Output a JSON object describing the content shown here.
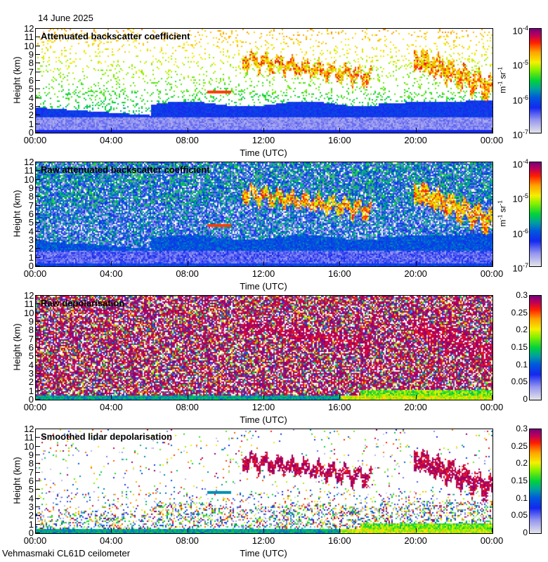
{
  "header": {
    "date": "14 June 2025"
  },
  "footer": {
    "instrument": "Vehmasmaki CL61D ceilometer"
  },
  "chart_data": [
    {
      "type": "heatmap",
      "title": "Attenuated backscatter coefficient",
      "xlabel": "Time (UTC)",
      "ylabel": "Height (km)",
      "xticks": [
        "00:00",
        "04:00",
        "08:00",
        "12:00",
        "16:00",
        "20:00",
        "00:00"
      ],
      "xlim": [
        0,
        24
      ],
      "yticks": [
        "0",
        "1",
        "2",
        "3",
        "4",
        "5",
        "6",
        "7",
        "8",
        "9",
        "10",
        "11",
        "12"
      ],
      "ylim": [
        0,
        12
      ],
      "colorbar": {
        "scale": "log",
        "label": "m-1 sr-1",
        "label_parts": [
          "m",
          "-1",
          " sr",
          "-1"
        ],
        "ticks": [
          {
            "base": "10",
            "exp": "-7"
          },
          {
            "base": "10",
            "exp": "-6"
          },
          {
            "base": "10",
            "exp": "-5"
          },
          {
            "base": "10",
            "exp": "-4"
          }
        ],
        "range": [
          1e-07,
          0.0001
        ]
      },
      "mode": "bsc",
      "noise": 0.12
    },
    {
      "type": "heatmap",
      "title": "Raw attenuated backscatter coefficient",
      "xlabel": "Time (UTC)",
      "ylabel": "Height (km)",
      "xticks": [
        "00:00",
        "04:00",
        "08:00",
        "12:00",
        "16:00",
        "20:00",
        "00:00"
      ],
      "xlim": [
        0,
        24
      ],
      "yticks": [
        "0",
        "1",
        "2",
        "3",
        "4",
        "5",
        "6",
        "7",
        "8",
        "9",
        "10",
        "11",
        "12"
      ],
      "ylim": [
        0,
        12
      ],
      "colorbar": {
        "scale": "log",
        "label": "m-1 sr-1",
        "label_parts": [
          "m",
          "-1",
          " sr",
          "-1"
        ],
        "ticks": [
          {
            "base": "10",
            "exp": "-7"
          },
          {
            "base": "10",
            "exp": "-6"
          },
          {
            "base": "10",
            "exp": "-5"
          },
          {
            "base": "10",
            "exp": "-4"
          }
        ],
        "range": [
          1e-07,
          0.0001
        ]
      },
      "mode": "rawbsc",
      "noise": 0.9
    },
    {
      "type": "heatmap",
      "title": "Raw depolarisation",
      "xlabel": "Time (UTC)",
      "ylabel": "Height (km)",
      "xticks": [
        "00:00",
        "04:00",
        "08:00",
        "12:00",
        "16:00",
        "20:00",
        "00:00"
      ],
      "xlim": [
        0,
        24
      ],
      "yticks": [
        "0",
        "1",
        "2",
        "3",
        "4",
        "5",
        "6",
        "7",
        "8",
        "9",
        "10",
        "11",
        "12"
      ],
      "ylim": [
        0,
        12
      ],
      "colorbar": {
        "scale": "linear",
        "label": "",
        "ticks": [
          "0",
          "0.05",
          "0.1",
          "0.15",
          "0.2",
          "0.25",
          "0.3"
        ],
        "range": [
          0,
          0.3
        ]
      },
      "mode": "rawdep",
      "noise": 0.85
    },
    {
      "type": "heatmap",
      "title": "Smoothed lidar depolarisation",
      "xlabel": "Time (UTC)",
      "ylabel": "Height (km)",
      "xticks": [
        "00:00",
        "04:00",
        "08:00",
        "12:00",
        "16:00",
        "20:00",
        "00:00"
      ],
      "xlim": [
        0,
        24
      ],
      "yticks": [
        "0",
        "1",
        "2",
        "3",
        "4",
        "5",
        "6",
        "7",
        "8",
        "9",
        "10",
        "11",
        "12"
      ],
      "ylim": [
        0,
        12
      ],
      "colorbar": {
        "scale": "linear",
        "label": "",
        "ticks": [
          "0",
          "0.05",
          "0.1",
          "0.15",
          "0.2",
          "0.25",
          "0.3"
        ],
        "range": [
          0,
          0.3
        ]
      },
      "mode": "dep",
      "noise": 0.1
    }
  ],
  "features": {
    "cirrus_1": {
      "start_h": 10.8,
      "end_h": 17.6,
      "top_km_start": 9.2,
      "top_km_end": 7.2,
      "thickness_km": 1.6
    },
    "cirrus_2": {
      "start_h": 19.8,
      "end_h": 24,
      "top_km_start": 9.8,
      "top_km_end": 6.2,
      "thickness_km": 2.5
    },
    "thin_layer": {
      "start_h": 9,
      "end_h": 10.2,
      "height_km": 4.8
    }
  }
}
